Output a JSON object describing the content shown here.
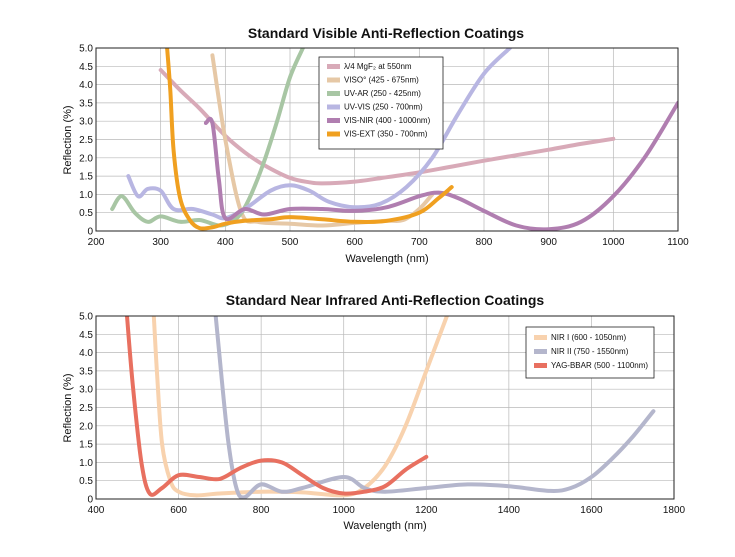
{
  "chart_data": [
    {
      "type": "line",
      "title": "Standard Visible Anti-Reflection Coatings",
      "xlabel": "Wavelength (nm)",
      "ylabel": "Reflection (%)",
      "xlim": [
        200,
        1100
      ],
      "ylim": [
        0,
        5
      ],
      "xticks": [
        "200",
        "300",
        "400",
        "500",
        "600",
        "700",
        "800",
        "900",
        "1000",
        "1100"
      ],
      "yticks": [
        "0",
        "0.5",
        "1.0",
        "1.5",
        "2.0",
        "2.5",
        "3.0",
        "3.5",
        "4.0",
        "4.5",
        "5.0"
      ],
      "grid": true,
      "legend_position": "top-center",
      "series": [
        {
          "name": "λ/4 MgF₂ at 550nm",
          "color": "#d8aab8",
          "x": [
            300,
            330,
            360,
            400,
            430,
            460,
            500,
            530,
            550,
            600,
            650,
            700,
            750,
            800,
            850,
            900,
            950,
            1000
          ],
          "y": [
            4.4,
            3.85,
            3.35,
            2.6,
            2.15,
            1.8,
            1.45,
            1.33,
            1.3,
            1.35,
            1.47,
            1.6,
            1.76,
            1.92,
            2.07,
            2.22,
            2.38,
            2.52
          ]
        },
        {
          "name": "VISO° (425 - 675nm)",
          "color": "#e6c8a6",
          "x": [
            380,
            400,
            425,
            450,
            500,
            550,
            600,
            650,
            675,
            700,
            720
          ],
          "y": [
            4.8,
            2.5,
            0.5,
            0.25,
            0.2,
            0.15,
            0.22,
            0.28,
            0.3,
            0.6,
            1.0
          ]
        },
        {
          "name": "UV-AR (250 - 425nm)",
          "color": "#a8c6a4",
          "x": [
            225,
            240,
            260,
            280,
            300,
            330,
            360,
            390,
            410,
            425,
            440,
            460,
            480,
            500,
            520
          ],
          "y": [
            0.6,
            0.95,
            0.5,
            0.25,
            0.4,
            0.25,
            0.3,
            0.15,
            0.25,
            0.5,
            1.0,
            1.9,
            3.0,
            4.2,
            5.0
          ]
        },
        {
          "name": "UV-VIS (250 - 700nm)",
          "color": "#b8b6e2",
          "x": [
            250,
            265,
            280,
            300,
            320,
            350,
            380,
            400,
            430,
            470,
            500,
            530,
            560,
            600,
            640,
            680,
            720,
            760,
            800,
            840
          ],
          "y": [
            1.5,
            0.95,
            1.15,
            1.1,
            0.6,
            0.6,
            0.45,
            0.35,
            0.6,
            1.1,
            1.25,
            1.1,
            0.8,
            0.65,
            0.75,
            1.2,
            2.0,
            3.2,
            4.3,
            5.0
          ]
        },
        {
          "name": "VIS-NIR (400 - 1000nm)",
          "color": "#b07eb0",
          "x": [
            370,
            380,
            390,
            400,
            430,
            460,
            500,
            550,
            600,
            650,
            700,
            730,
            760,
            800,
            850,
            900,
            950,
            1000,
            1050,
            1100
          ],
          "y": [
            2.95,
            2.95,
            1.4,
            0.35,
            0.6,
            0.45,
            0.6,
            0.6,
            0.55,
            0.65,
            0.95,
            1.05,
            0.9,
            0.55,
            0.15,
            0.05,
            0.25,
            0.95,
            2.05,
            3.5
          ]
        },
        {
          "name": "VIS-EXT (350 - 700nm)",
          "color": "#f0a020",
          "x": [
            310,
            315,
            320,
            330,
            345,
            360,
            380,
            400,
            430,
            470,
            500,
            550,
            600,
            650,
            700,
            730,
            750
          ],
          "y": [
            5.0,
            3.8,
            2.2,
            0.9,
            0.3,
            0.08,
            0.1,
            0.2,
            0.28,
            0.32,
            0.38,
            0.32,
            0.25,
            0.28,
            0.5,
            0.9,
            1.2
          ]
        }
      ]
    },
    {
      "type": "line",
      "title": "Standard Near Infrared Anti-Reflection Coatings",
      "xlabel": "Wavelength (nm)",
      "ylabel": "Reflection (%)",
      "xlim": [
        400,
        1800
      ],
      "ylim": [
        0,
        5
      ],
      "xticks": [
        "400",
        "600",
        "800",
        "1000",
        "1200",
        "1400",
        "1600",
        "1800"
      ],
      "yticks": [
        "0",
        "0.5",
        "1.0",
        "1.5",
        "2.0",
        "2.5",
        "3.0",
        "3.5",
        "4.0",
        "4.5",
        "5.0"
      ],
      "grid": true,
      "legend_position": "top-right",
      "series": [
        {
          "name": "NIR I (600 - 1050nm)",
          "color": "#f8d2ae",
          "x": [
            540,
            548,
            560,
            580,
            600,
            640,
            700,
            800,
            900,
            1000,
            1050,
            1100,
            1150,
            1200,
            1250
          ],
          "y": [
            5.0,
            3.4,
            1.5,
            0.5,
            0.2,
            0.1,
            0.15,
            0.2,
            0.18,
            0.1,
            0.3,
            0.9,
            2.0,
            3.5,
            5.0
          ]
        },
        {
          "name": "NIR II (750 - 1550nm)",
          "color": "#b4b6cc",
          "x": [
            690,
            700,
            720,
            740,
            760,
            800,
            850,
            900,
            1000,
            1050,
            1100,
            1200,
            1300,
            1400,
            1500,
            1550,
            1600,
            1650,
            1700,
            1750
          ],
          "y": [
            5.0,
            3.8,
            1.6,
            0.3,
            0.05,
            0.4,
            0.2,
            0.3,
            0.6,
            0.3,
            0.2,
            0.3,
            0.4,
            0.35,
            0.22,
            0.3,
            0.6,
            1.1,
            1.7,
            2.4
          ]
        },
        {
          "name": "YAG-BBAR (500 - 1100nm)",
          "color": "#e87060",
          "x": [
            475,
            490,
            510,
            530,
            560,
            600,
            650,
            700,
            750,
            800,
            850,
            900,
            950,
            1000,
            1050,
            1100,
            1150,
            1200
          ],
          "y": [
            5.0,
            3.0,
            1.0,
            0.15,
            0.3,
            0.65,
            0.6,
            0.55,
            0.85,
            1.05,
            1.0,
            0.65,
            0.3,
            0.15,
            0.2,
            0.35,
            0.8,
            1.15
          ]
        }
      ]
    }
  ]
}
